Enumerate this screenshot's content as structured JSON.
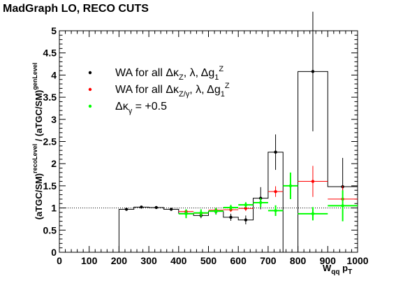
{
  "header": {
    "title": "MadGraph LO, RECO CUTS"
  },
  "chart_data": {
    "type": "scatter",
    "title": "MadGraph LO, RECO CUTS",
    "xlabel_main": "W",
    "xlabel_sub": "qq",
    "xlabel_main2": "p",
    "xlabel_sub2": "T",
    "ylabel": "(aTGC/SM)^{recoLevel} / (aTGC/SM)^{genLevel}",
    "xlim": [
      0,
      1000
    ],
    "ylim": [
      0,
      5
    ],
    "xticks": [
      0,
      100,
      200,
      300,
      400,
      500,
      600,
      700,
      800,
      900,
      1000
    ],
    "xtick_labels": [
      "0",
      "100",
      "200",
      "300",
      "400",
      "500",
      "600",
      "700",
      "800",
      "900",
      "1000"
    ],
    "yticks": [
      0,
      0.5,
      1,
      1.5,
      2,
      2.5,
      3,
      3.5,
      4,
      4.5,
      5
    ],
    "ytick_labels": [
      "0",
      "0.5",
      "1",
      "1.5",
      "2",
      "2.5",
      "3",
      "3.5",
      "4",
      "4.5",
      "5"
    ],
    "reference_line": {
      "y": 1,
      "style": "dotted"
    },
    "legend_position": "top-left",
    "series": [
      {
        "legend_label": "WA for all",
        "legend_math": "Δκ_Z, λ, Δg_1^Z",
        "color": "#000000",
        "step": true,
        "x": [
          225,
          275,
          325,
          375,
          425,
          475,
          525,
          575,
          625,
          675,
          725,
          850,
          950
        ],
        "xerr": [
          25,
          25,
          25,
          25,
          25,
          25,
          25,
          25,
          25,
          25,
          25,
          50,
          50
        ],
        "y": [
          0.97,
          1.02,
          1.01,
          0.97,
          0.88,
          0.83,
          0.92,
          0.79,
          0.73,
          1.22,
          2.26,
          4.08,
          1.48
        ],
        "yerr": [
          0.02,
          0.02,
          0.03,
          0.03,
          0.05,
          0.06,
          0.07,
          0.08,
          0.1,
          0.25,
          0.4,
          1.35,
          0.65
        ]
      },
      {
        "legend_label": "WA for all",
        "legend_math": "Δκ_{Z/γ}, λ, Δg_1^Z",
        "color": "#ff0000",
        "step": true,
        "x": [
          425,
          475,
          525,
          575,
          625,
          725,
          850,
          950
        ],
        "xerr": [
          25,
          25,
          25,
          25,
          25,
          25,
          50,
          50
        ],
        "y": [
          0.92,
          0.88,
          0.95,
          0.96,
          0.99,
          1.37,
          1.6,
          1.2
        ],
        "yerr": [
          0.04,
          0.05,
          0.05,
          0.05,
          0.06,
          0.12,
          0.35,
          0.3
        ]
      },
      {
        "legend_label": "",
        "legend_math": "Δκ_γ = +0.5",
        "color": "#00ff00",
        "step": false,
        "x": [
          425,
          475,
          525,
          575,
          625,
          675,
          725,
          775,
          850,
          950
        ],
        "xerr": [
          25,
          25,
          25,
          25,
          25,
          25,
          25,
          25,
          50,
          50
        ],
        "y": [
          0.87,
          0.89,
          0.93,
          1.01,
          1.07,
          1.12,
          0.94,
          1.5,
          0.87,
          1.05
        ],
        "yerr": [
          0.1,
          0.08,
          0.07,
          0.06,
          0.06,
          0.1,
          0.12,
          0.3,
          0.15,
          0.35
        ]
      }
    ]
  }
}
